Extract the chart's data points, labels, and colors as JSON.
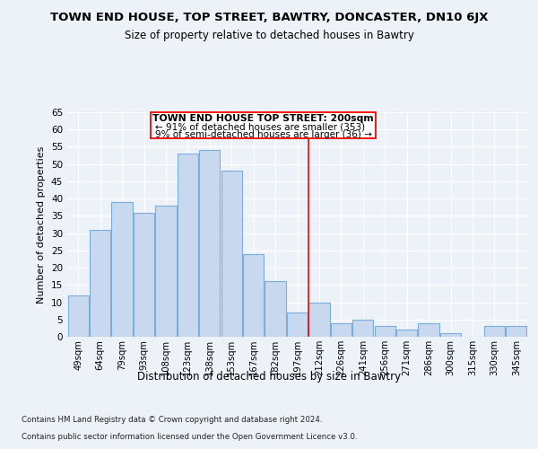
{
  "title": "TOWN END HOUSE, TOP STREET, BAWTRY, DONCASTER, DN10 6JX",
  "subtitle": "Size of property relative to detached houses in Bawtry",
  "xlabel": "Distribution of detached houses by size in Bawtry",
  "ylabel": "Number of detached properties",
  "categories": [
    "49sqm",
    "64sqm",
    "79sqm",
    "93sqm",
    "108sqm",
    "123sqm",
    "138sqm",
    "153sqm",
    "167sqm",
    "182sqm",
    "197sqm",
    "212sqm",
    "226sqm",
    "241sqm",
    "256sqm",
    "271sqm",
    "286sqm",
    "300sqm",
    "315sqm",
    "330sqm",
    "345sqm"
  ],
  "values": [
    12,
    31,
    39,
    36,
    38,
    53,
    54,
    48,
    24,
    16,
    7,
    10,
    4,
    5,
    3,
    2,
    4,
    1,
    0,
    3,
    3
  ],
  "bar_color": "#c8d9ef",
  "bar_edge_color": "#7aadda",
  "red_line_x": 10.5,
  "annotation_title": "TOWN END HOUSE TOP STREET: 200sqm",
  "annotation_line1": "← 91% of detached houses are smaller (353)",
  "annotation_line2": "9% of semi-detached houses are larger (36) →",
  "footer1": "Contains HM Land Registry data © Crown copyright and database right 2024.",
  "footer2": "Contains public sector information licensed under the Open Government Licence v3.0.",
  "ylim": [
    0,
    65
  ],
  "background_color": "#edf2f9",
  "grid_color": "#ffffff"
}
